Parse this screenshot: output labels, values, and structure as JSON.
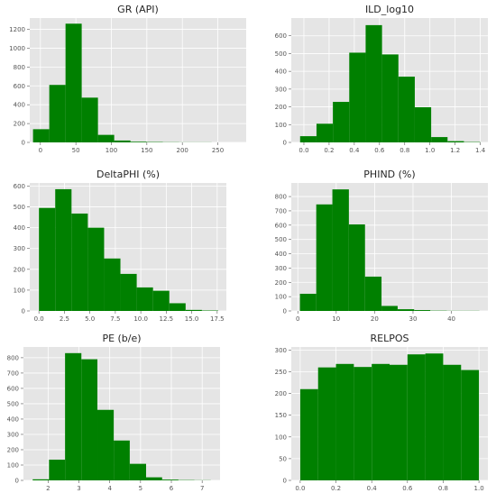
{
  "chart_data": [
    {
      "type": "bar",
      "title": "GR (API)",
      "bin_edges": [
        -10.4,
        12.5,
        35.4,
        58.2,
        81.1,
        104.0,
        126.9,
        149.8,
        172.6,
        195.5,
        218.4,
        241.3
      ],
      "values": [
        140,
        610,
        1260,
        475,
        80,
        20,
        7,
        4,
        2,
        1,
        1
      ],
      "xlim": [
        -15,
        290
      ],
      "ylim": [
        0,
        1320
      ],
      "xticks": [
        0,
        50,
        100,
        150,
        200,
        250
      ],
      "yticks": [
        0,
        200,
        400,
        600,
        800,
        1000,
        1200
      ],
      "grid": true,
      "xlabel": "",
      "ylabel": ""
    },
    {
      "type": "bar",
      "title": "ILD_log10",
      "bin_edges": [
        -0.03,
        0.1,
        0.23,
        0.36,
        0.49,
        0.62,
        0.75,
        0.88,
        1.01,
        1.14,
        1.27,
        1.4
      ],
      "values": [
        35,
        105,
        228,
        505,
        660,
        495,
        370,
        198,
        30,
        7,
        2
      ],
      "xlim": [
        -0.1,
        1.46
      ],
      "ylim": [
        0,
        700
      ],
      "xticks": [
        0.0,
        0.2,
        0.4,
        0.6,
        0.8,
        1.0,
        1.2,
        1.4
      ],
      "xtick_labels": [
        "0.0",
        "0.2",
        "0.4",
        "0.6",
        "0.8",
        "1.0",
        "1.2",
        "1.4"
      ],
      "yticks": [
        0,
        100,
        200,
        300,
        400,
        500,
        600
      ],
      "grid": true,
      "xlabel": "",
      "ylabel": ""
    },
    {
      "type": "bar",
      "title": "DeltaPHI (%)",
      "bin_edges": [
        0.0,
        1.6,
        3.2,
        4.8,
        6.4,
        8.0,
        9.6,
        11.2,
        12.8,
        14.4,
        16.0,
        17.6
      ],
      "values": [
        495,
        585,
        468,
        400,
        252,
        178,
        113,
        97,
        37,
        5,
        2
      ],
      "xlim": [
        -0.9,
        18.4
      ],
      "ylim": [
        0,
        615
      ],
      "xticks": [
        0.0,
        2.5,
        5.0,
        7.5,
        10.0,
        12.5,
        15.0,
        17.5
      ],
      "xtick_labels": [
        "0.0",
        "2.5",
        "5.0",
        "7.5",
        "10.0",
        "12.5",
        "15.0",
        "17.5"
      ],
      "yticks": [
        0,
        100,
        200,
        300,
        400,
        500,
        600
      ],
      "grid": true,
      "xlabel": "",
      "ylabel": ""
    },
    {
      "type": "bar",
      "title": "PHIND (%)",
      "bin_edges": [
        0.55,
        4.8,
        9.0,
        13.3,
        17.5,
        21.8,
        26.0,
        30.3,
        34.5,
        38.8,
        43.0,
        47.3
      ],
      "values": [
        120,
        745,
        850,
        605,
        240,
        35,
        12,
        6,
        2,
        1,
        1
      ],
      "xlim": [
        -1.7,
        49.5
      ],
      "ylim": [
        0,
        895
      ],
      "xticks": [
        0,
        10,
        20,
        30,
        40
      ],
      "yticks": [
        0,
        100,
        200,
        300,
        400,
        500,
        600,
        700,
        800
      ],
      "grid": true,
      "xlabel": "",
      "ylabel": ""
    },
    {
      "type": "bar",
      "title": "PE (b/e)",
      "bin_edges": [
        1.5,
        2.03,
        2.55,
        3.08,
        3.6,
        4.13,
        4.65,
        5.18,
        5.7,
        6.23,
        6.75,
        7.28
      ],
      "values": [
        7,
        135,
        830,
        790,
        460,
        260,
        108,
        20,
        5,
        2,
        1
      ],
      "xlim": [
        1.2,
        7.58
      ],
      "ylim": [
        0,
        870
      ],
      "xticks": [
        2,
        3,
        4,
        5,
        6,
        7
      ],
      "yticks": [
        0,
        100,
        200,
        300,
        400,
        500,
        600,
        700,
        800
      ],
      "grid": true,
      "xlabel": "",
      "ylabel": ""
    },
    {
      "type": "bar",
      "title": "RELPOS",
      "bin_edges": [
        0.0,
        0.1,
        0.2,
        0.3,
        0.4,
        0.5,
        0.6,
        0.7,
        0.8,
        0.9,
        1.0
      ],
      "values": [
        210,
        260,
        268,
        261,
        268,
        266,
        290,
        292,
        266,
        254
      ],
      "xlim": [
        -0.05,
        1.05
      ],
      "ylim": [
        0,
        307
      ],
      "xticks": [
        0.0,
        0.2,
        0.4,
        0.6,
        0.8,
        1.0
      ],
      "xtick_labels": [
        "0.0",
        "0.2",
        "0.4",
        "0.6",
        "0.8",
        "1.0"
      ],
      "yticks": [
        0,
        50,
        100,
        150,
        200,
        250,
        300
      ],
      "grid": true,
      "xlabel": "",
      "ylabel": ""
    }
  ],
  "colors": {
    "bar": "#008000",
    "plot_background": "#e5e5e5",
    "grid": "#ffffff"
  }
}
